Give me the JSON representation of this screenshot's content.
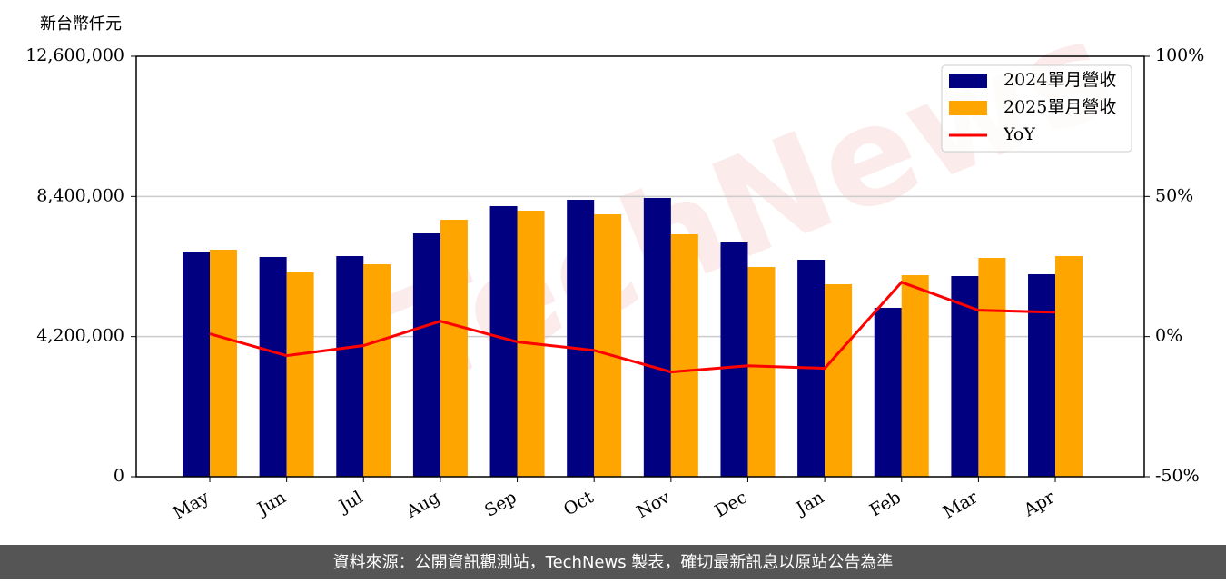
{
  "chart_data": {
    "type": "bar_line",
    "y_label": "新台幣仟元",
    "watermark": "TechNews",
    "source": "資料來源：公開資訊觀測站，TechNews 製表，確切最新訊息以原站公告為準",
    "categories": [
      "May",
      "Jun",
      "Jul",
      "Aug",
      "Sep",
      "Oct",
      "Nov",
      "Dec",
      "Jan",
      "Feb",
      "Mar",
      "Apr"
    ],
    "series": [
      {
        "name": "2024單月營收",
        "color": "#000080",
        "kind": "bar",
        "values": [
          6749000,
          6586000,
          6613000,
          7293000,
          8110000,
          8300000,
          8355000,
          7021000,
          6504000,
          5062000,
          6014000,
          6069000
        ]
      },
      {
        "name": "2025單月營收",
        "color": "#ffa500",
        "kind": "bar",
        "values": [
          6804000,
          6123000,
          6368000,
          7702000,
          7974000,
          7865000,
          7266000,
          6286000,
          5769000,
          6041000,
          6559000,
          6613000
        ]
      },
      {
        "name": "YoY",
        "color": "#ff0000",
        "kind": "line",
        "axis": "y2",
        "values": [
          1.0,
          -6.8,
          -3.2,
          5.5,
          -1.9,
          -4.9,
          -12.6,
          -10.4,
          -11.3,
          19.4,
          9.4,
          8.7
        ]
      }
    ],
    "ylim": [
      0,
      12600000
    ],
    "yticks": [
      0,
      {
        "value": 4200000,
        "label": "4,200,000"
      },
      {
        "value": 8400000,
        "label": "8,400,000"
      },
      {
        "value": 12600000,
        "label": "12,600,000"
      }
    ],
    "y2lim": [
      -50,
      100
    ],
    "y2ticks": [
      {
        "value": -50,
        "label": "-50%"
      },
      {
        "value": 0,
        "label": "0%"
      },
      {
        "value": 50,
        "label": "50%"
      },
      {
        "value": 100,
        "label": "100%"
      }
    ],
    "grid": true,
    "legend": "upper right"
  }
}
